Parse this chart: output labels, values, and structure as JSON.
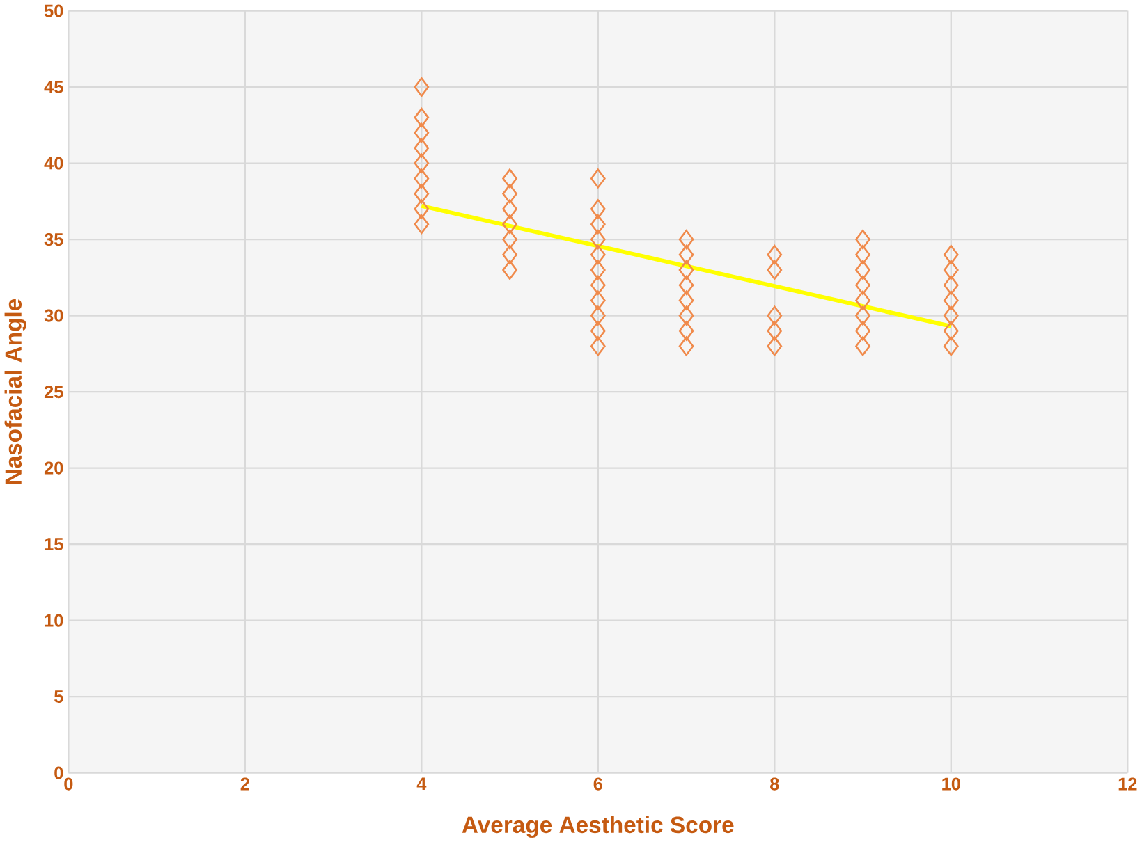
{
  "chart_data": {
    "type": "scatter",
    "xlabel": "Average Aesthetic Score",
    "ylabel": "Nasofacial Angle",
    "grid": true,
    "marker": "diamond",
    "xlim": [
      0,
      12
    ],
    "xticks": [
      0,
      2,
      4,
      6,
      8,
      10,
      12
    ],
    "ylim": [
      0,
      50
    ],
    "yticks": [
      0,
      5,
      10,
      15,
      20,
      25,
      30,
      35,
      40,
      45,
      50
    ],
    "series": [
      {
        "color": "#f08a4b",
        "x": [
          4,
          4,
          4,
          4,
          4,
          4,
          4,
          4,
          4,
          5,
          5,
          5,
          5,
          5,
          5,
          5,
          6,
          6,
          6,
          6,
          6,
          6,
          6,
          6,
          6,
          6,
          6,
          7,
          7,
          7,
          7,
          7,
          7,
          7,
          7,
          8,
          8,
          8,
          8,
          8,
          9,
          9,
          9,
          9,
          9,
          9,
          9,
          9,
          10,
          10,
          10,
          10,
          10,
          10,
          10
        ],
        "values": [
          36,
          37,
          38,
          39,
          40,
          41,
          42,
          43,
          45,
          33,
          34,
          35,
          36,
          37,
          38,
          39,
          28,
          29,
          30,
          31,
          32,
          33,
          34,
          35,
          36,
          37,
          39,
          28,
          29,
          30,
          31,
          32,
          33,
          34,
          35,
          28,
          29,
          30,
          33,
          34,
          28,
          29,
          30,
          31,
          32,
          33,
          34,
          35,
          28,
          29,
          30,
          31,
          32,
          33,
          34
        ]
      },
      {
        "type": "line",
        "color": "#ffff00",
        "marker": "none",
        "x": [
          4,
          10
        ],
        "values": [
          37.2,
          29.3
        ]
      }
    ]
  }
}
